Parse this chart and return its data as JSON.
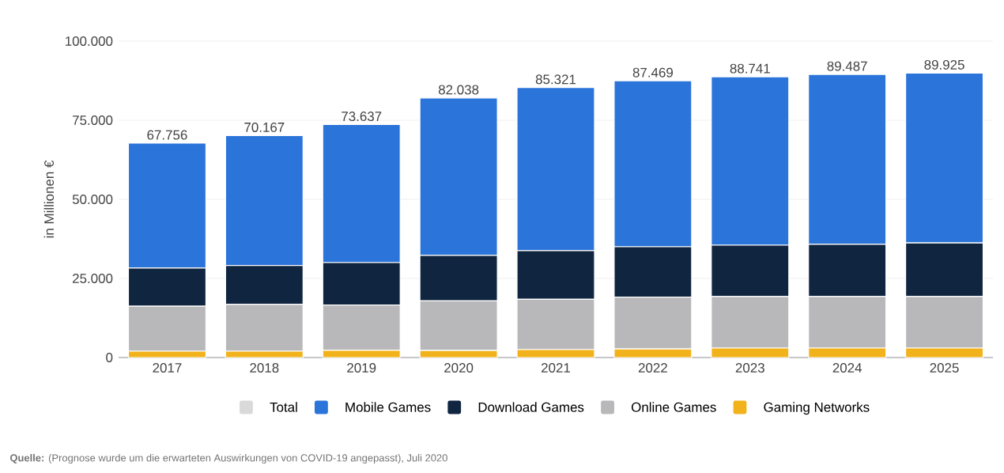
{
  "chart_data": {
    "type": "bar",
    "stacked": true,
    "categories": [
      "2017",
      "2018",
      "2019",
      "2020",
      "2021",
      "2022",
      "2023",
      "2024",
      "2025"
    ],
    "series": [
      {
        "name": "Gaming Networks",
        "color": "#f2b21b",
        "values": [
          2000,
          2000,
          2300,
          2200,
          2500,
          2700,
          3000,
          3000,
          3000
        ]
      },
      {
        "name": "Online Games",
        "color": "#b8b8bb",
        "values": [
          14200,
          14800,
          14300,
          15700,
          15900,
          16400,
          16300,
          16300,
          16300
        ]
      },
      {
        "name": "Download Games",
        "color": "#10253f",
        "values": [
          12100,
          12300,
          13400,
          14400,
          15400,
          15900,
          16200,
          16500,
          16900
        ]
      },
      {
        "name": "Mobile Games",
        "color": "#2b74d9",
        "values": [
          39456,
          41067,
          43637,
          49738,
          51521,
          52469,
          53241,
          53687,
          53725
        ]
      },
      {
        "name": "Total",
        "color": "#d9d9d9",
        "values": [
          null,
          null,
          null,
          null,
          null,
          null,
          null,
          null,
          null
        ]
      }
    ],
    "totals": [
      "67.756",
      "70.167",
      "73.637",
      "82.038",
      "85.321",
      "87.469",
      "88.741",
      "89.487",
      "89.925"
    ],
    "ylabel": "in Millionen €",
    "ylim": [
      0,
      100000
    ],
    "yticks": [
      {
        "value": 0,
        "label": "0"
      },
      {
        "value": 25000,
        "label": "25.000"
      },
      {
        "value": 50000,
        "label": "50.000"
      },
      {
        "value": 75000,
        "label": "75.000"
      },
      {
        "value": 100000,
        "label": "100.000"
      }
    ],
    "grid": "y",
    "legend": "bottom",
    "annotations": [
      "**Quelle:** (Prognose wurde um die erwarteten Auswirkungen von COVID-19 angepasst), Juli 2020"
    ]
  }
}
